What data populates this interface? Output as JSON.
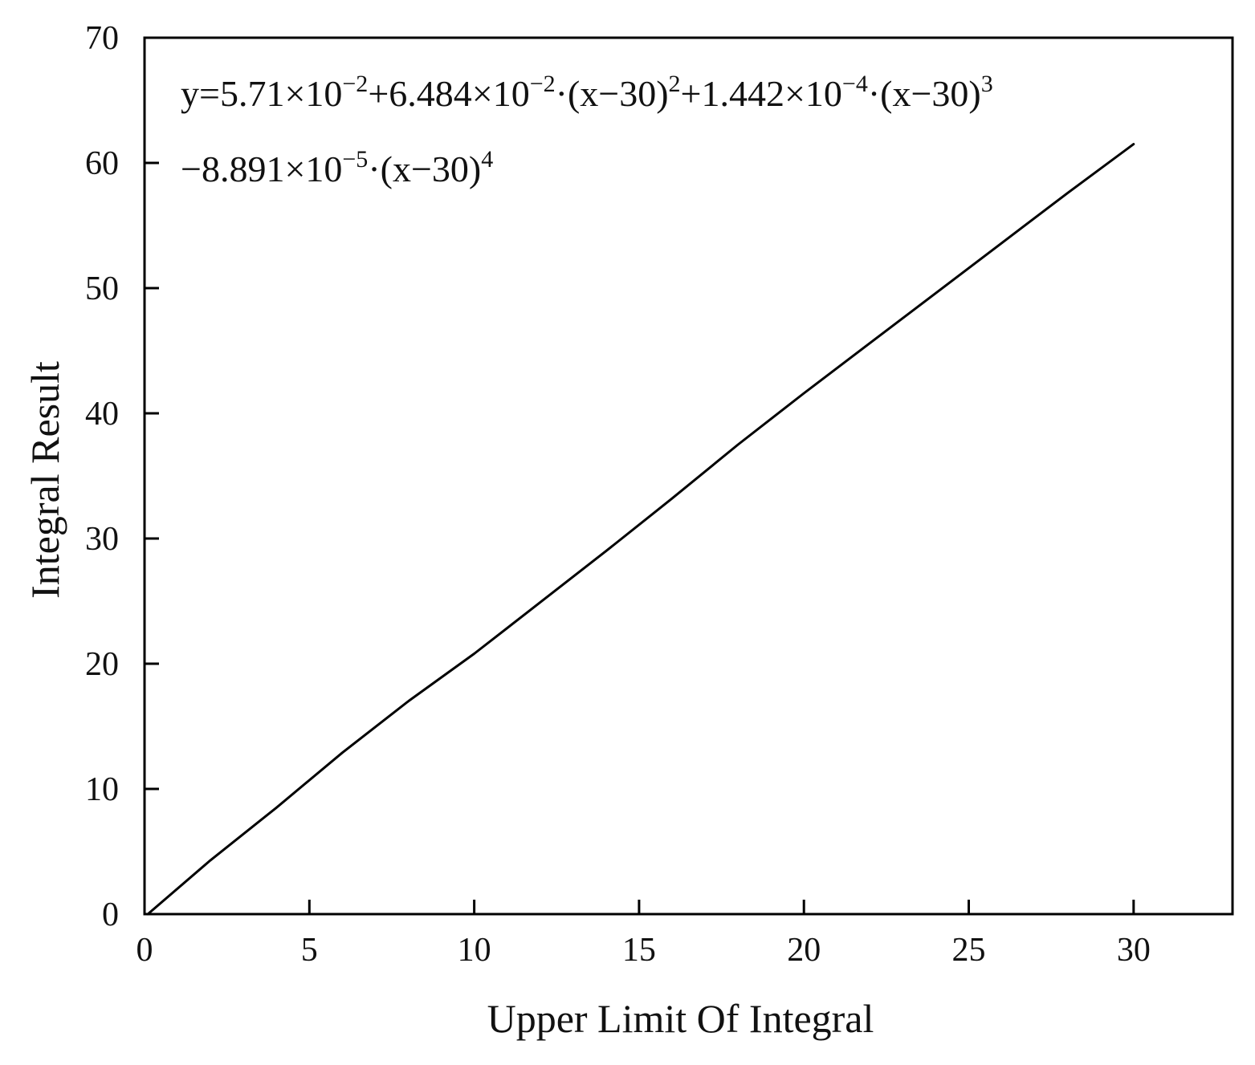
{
  "chart_data": {
    "type": "line",
    "xlabel": "Upper Limit Of Integral",
    "ylabel": "Integral Result",
    "xlim": [
      0,
      33
    ],
    "ylim": [
      0,
      70
    ],
    "x_ticks": [
      0,
      5,
      10,
      15,
      20,
      25,
      30
    ],
    "y_ticks": [
      0,
      10,
      20,
      30,
      40,
      50,
      60,
      70
    ],
    "grid": false,
    "legend": "none",
    "line_color": "#000000",
    "equation": {
      "line1": {
        "p1": "y=5.71×10",
        "e1": "−2",
        "p2": "+6.484×10",
        "e2": "−2",
        "p3": "·(x−30)",
        "e3": "2",
        "p4": "+1.442×10",
        "e4": "−4",
        "p5": "·(x−30)",
        "e5": "3"
      },
      "line2": {
        "p1": "−8.891×10",
        "e1": "−5",
        "p2": "·(x−30)",
        "e2": "4"
      }
    },
    "series": [
      {
        "x": [
          0.1,
          2,
          4,
          6,
          8,
          10,
          12,
          14,
          16,
          18,
          20,
          22,
          24,
          26,
          28,
          30
        ],
        "y": [
          0.0,
          4.3,
          8.5,
          12.9,
          17.0,
          20.8,
          24.9,
          29.0,
          33.2,
          37.5,
          41.6,
          45.6,
          49.6,
          53.6,
          57.6,
          61.5
        ]
      }
    ]
  }
}
